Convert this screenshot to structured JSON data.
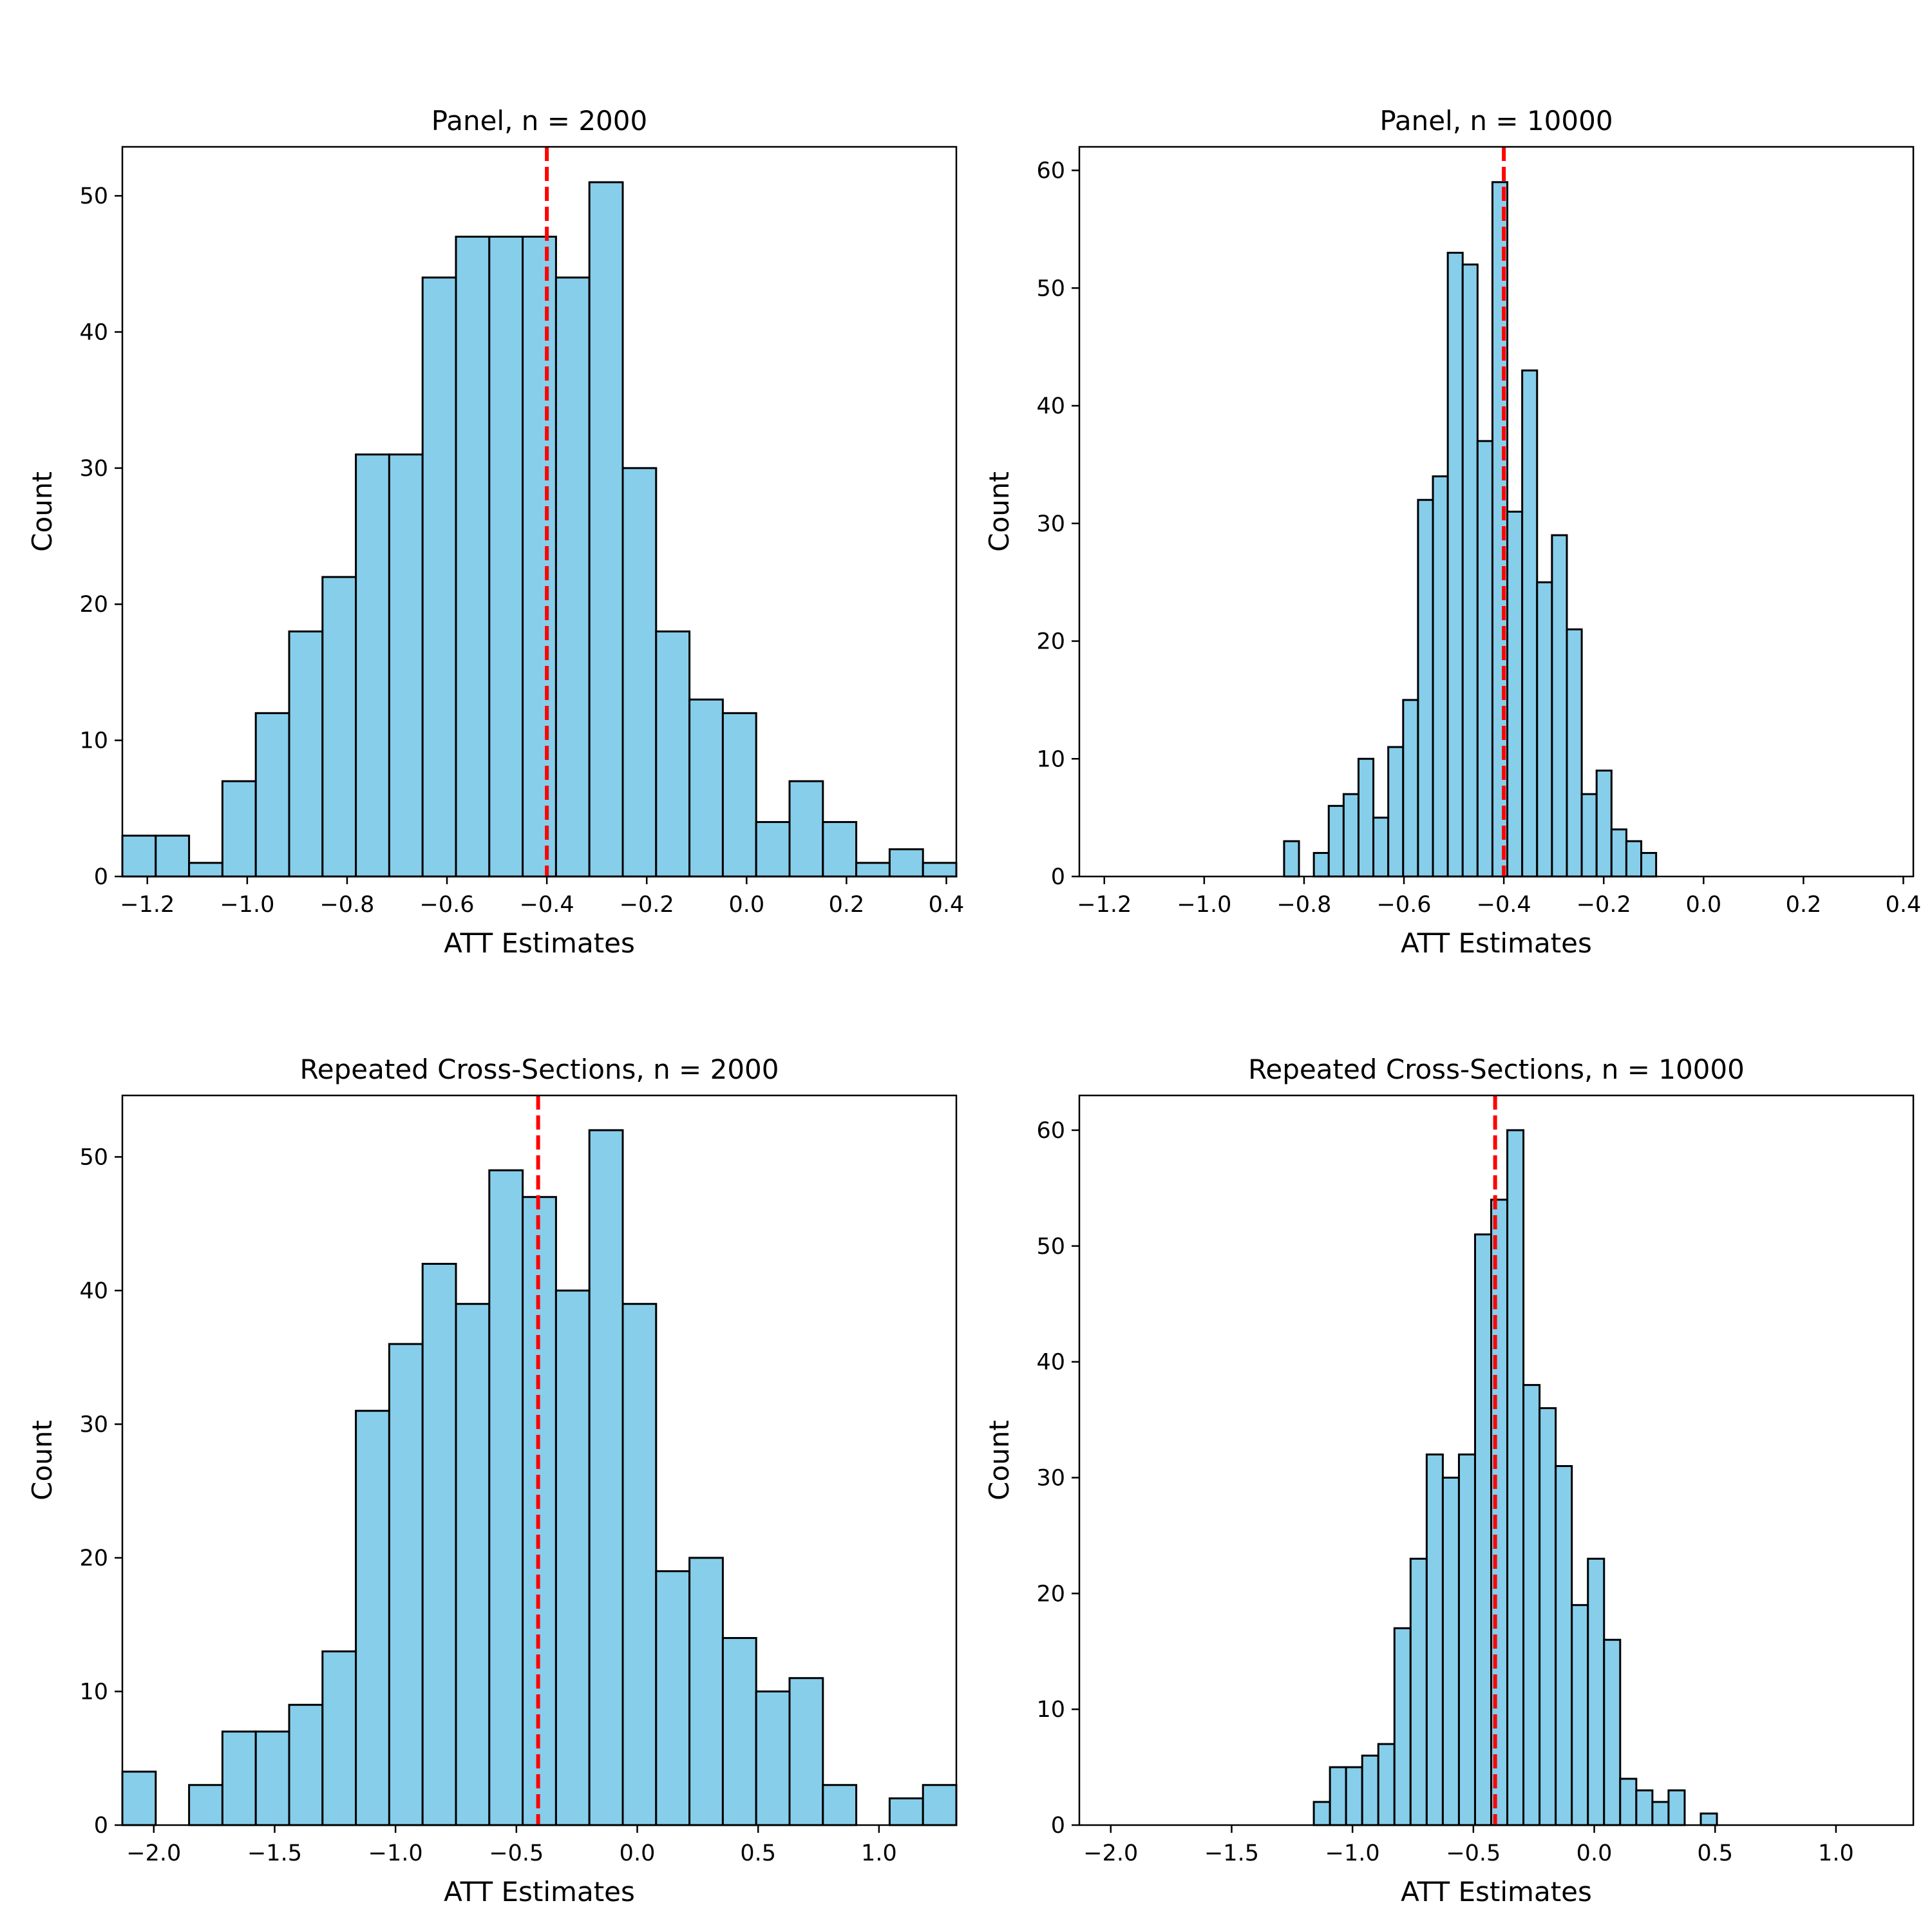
{
  "figure": {
    "bar_color": "#87CEEB",
    "edge_color": "#000000",
    "ref_line_color": "#FF0000"
  },
  "chart_data": [
    {
      "type": "bar",
      "title": "Panel, n = 2000",
      "xlabel": "ATT Estimates",
      "ylabel": "Count",
      "xlim": [
        -1.25,
        0.42
      ],
      "ylim": [
        0,
        53.6
      ],
      "xticks": [
        -1.2,
        -1.0,
        -0.8,
        -0.6,
        -0.4,
        -0.2,
        0.0,
        0.2,
        0.4
      ],
      "xtick_labels": [
        "−1.2",
        "−1.0",
        "−0.8",
        "−0.6",
        "−0.4",
        "−0.2",
        "0.0",
        "0.2",
        "0.4"
      ],
      "yticks": [
        0,
        10,
        20,
        30,
        40,
        50
      ],
      "ytick_labels": [
        "0",
        "10",
        "20",
        "30",
        "40",
        "50"
      ],
      "bin_start": -1.25,
      "bin_width": 0.0668,
      "counts": [
        3,
        3,
        1,
        7,
        12,
        18,
        22,
        31,
        31,
        44,
        47,
        47,
        47,
        44,
        51,
        30,
        18,
        13,
        12,
        4,
        7,
        4,
        1,
        2,
        1
      ],
      "reference_line_x": -0.4
    },
    {
      "type": "bar",
      "title": "Panel, n = 10000",
      "xlabel": "ATT Estimates",
      "ylabel": "Count",
      "xlim": [
        -1.25,
        0.42
      ],
      "ylim": [
        0,
        62
      ],
      "xticks": [
        -1.2,
        -1.0,
        -0.8,
        -0.6,
        -0.4,
        -0.2,
        0.0,
        0.2,
        0.4
      ],
      "xtick_labels": [
        "−1.2",
        "−1.0",
        "−0.8",
        "−0.6",
        "−0.4",
        "−0.2",
        "0.0",
        "0.2",
        "0.4"
      ],
      "yticks": [
        0,
        10,
        20,
        30,
        40,
        50,
        60
      ],
      "ytick_labels": [
        "0",
        "10",
        "20",
        "30",
        "40",
        "50",
        "60"
      ],
      "bin_start": -0.84,
      "bin_width": 0.0298,
      "counts": [
        3,
        0,
        2,
        6,
        7,
        10,
        5,
        11,
        15,
        32,
        34,
        53,
        52,
        37,
        59,
        31,
        43,
        25,
        29,
        21,
        7,
        9,
        4,
        3,
        2
      ],
      "reference_line_x": -0.4
    },
    {
      "type": "bar",
      "title": "Repeated Cross-Sections, n = 2000",
      "xlabel": "ATT Estimates",
      "ylabel": "Count",
      "xlim": [
        -2.13,
        1.32
      ],
      "ylim": [
        0,
        54.6
      ],
      "xticks": [
        -2.0,
        -1.5,
        -1.0,
        -0.5,
        0.0,
        0.5,
        1.0
      ],
      "xtick_labels": [
        "−2.0",
        "−1.5",
        "−1.0",
        "−0.5",
        "0.0",
        "0.5",
        "1.0"
      ],
      "yticks": [
        0,
        10,
        20,
        30,
        40,
        50
      ],
      "ytick_labels": [
        "0",
        "10",
        "20",
        "30",
        "40",
        "50"
      ],
      "bin_start": -2.13,
      "bin_width": 0.138,
      "counts": [
        4,
        0,
        3,
        7,
        7,
        9,
        13,
        31,
        36,
        42,
        39,
        49,
        47,
        40,
        52,
        39,
        19,
        20,
        14,
        10,
        11,
        3,
        0,
        2,
        3
      ],
      "reference_line_x": -0.41
    },
    {
      "type": "bar",
      "title": "Repeated Cross-Sections, n = 10000",
      "xlabel": "ATT Estimates",
      "ylabel": "Count",
      "xlim": [
        -2.13,
        1.32
      ],
      "ylim": [
        0,
        63
      ],
      "xticks": [
        -2.0,
        -1.5,
        -1.0,
        -0.5,
        0.0,
        0.5,
        1.0
      ],
      "xtick_labels": [
        "−2.0",
        "−1.5",
        "−1.0",
        "−0.5",
        "0.0",
        "0.5",
        "1.0"
      ],
      "yticks": [
        0,
        10,
        20,
        30,
        40,
        50,
        60
      ],
      "ytick_labels": [
        "0",
        "10",
        "20",
        "30",
        "40",
        "50",
        "60"
      ],
      "bin_start": -1.16,
      "bin_width": 0.0667,
      "counts": [
        2,
        5,
        5,
        6,
        7,
        17,
        23,
        32,
        30,
        32,
        51,
        54,
        60,
        38,
        36,
        31,
        19,
        23,
        16,
        4,
        3,
        2,
        3,
        0,
        1
      ],
      "reference_line_x": -0.41
    }
  ]
}
